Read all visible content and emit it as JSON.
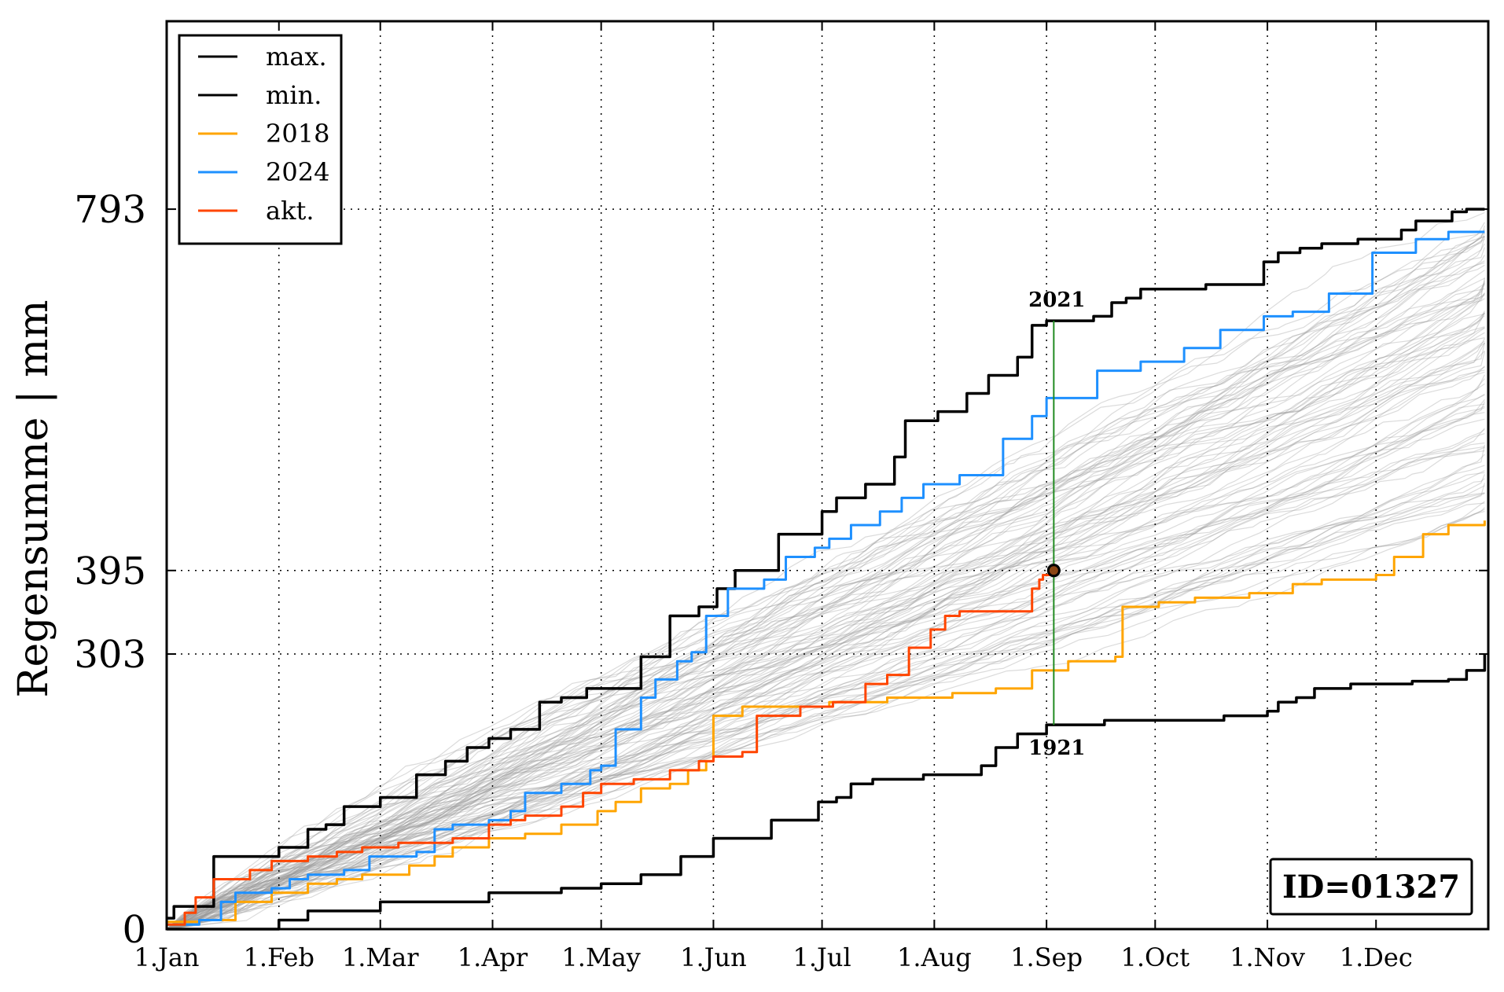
{
  "chart_data": {
    "type": "line",
    "ylabel": "Regensumme | mm",
    "xlabel": "",
    "title": "",
    "x_unit": "day of year",
    "xlim": [
      1,
      366
    ],
    "ylim": [
      0,
      1000
    ],
    "xticks": [
      {
        "day": 1,
        "label": "1.Jan"
      },
      {
        "day": 32,
        "label": "1.Feb"
      },
      {
        "day": 60,
        "label": "1.Mar"
      },
      {
        "day": 91,
        "label": "1.Apr"
      },
      {
        "day": 121,
        "label": "1.May"
      },
      {
        "day": 152,
        "label": "1.Jun"
      },
      {
        "day": 182,
        "label": "1.Jul"
      },
      {
        "day": 213,
        "label": "1.Aug"
      },
      {
        "day": 244,
        "label": "1.Sep"
      },
      {
        "day": 274,
        "label": "1.Oct"
      },
      {
        "day": 305,
        "label": "1.Nov"
      },
      {
        "day": 335,
        "label": "1.Dec"
      }
    ],
    "yticks": [
      0,
      303,
      395,
      793
    ],
    "grid": true,
    "legend_position": "top-left",
    "series": [
      {
        "name": "max.",
        "color": "#000000",
        "points": [
          [
            1,
            12
          ],
          [
            3,
            25
          ],
          [
            14,
            80
          ],
          [
            32,
            90
          ],
          [
            40,
            110
          ],
          [
            45,
            115
          ],
          [
            50,
            135
          ],
          [
            60,
            145
          ],
          [
            70,
            170
          ],
          [
            78,
            185
          ],
          [
            84,
            200
          ],
          [
            90,
            210
          ],
          [
            96,
            220
          ],
          [
            104,
            250
          ],
          [
            110,
            255
          ],
          [
            117,
            265
          ],
          [
            121,
            265
          ],
          [
            132,
            300
          ],
          [
            140,
            345
          ],
          [
            148,
            355
          ],
          [
            153,
            375
          ],
          [
            158,
            395
          ],
          [
            170,
            435
          ],
          [
            182,
            460
          ],
          [
            186,
            475
          ],
          [
            194,
            490
          ],
          [
            202,
            520
          ],
          [
            205,
            560
          ],
          [
            213,
            560
          ],
          [
            214,
            570
          ],
          [
            222,
            590
          ],
          [
            228,
            610
          ],
          [
            236,
            630
          ],
          [
            240,
            665
          ],
          [
            244,
            670
          ],
          [
            257,
            675
          ],
          [
            262,
            690
          ],
          [
            266,
            695
          ],
          [
            270,
            705
          ],
          [
            288,
            710
          ],
          [
            304,
            735
          ],
          [
            308,
            745
          ],
          [
            314,
            750
          ],
          [
            320,
            755
          ],
          [
            330,
            760
          ],
          [
            342,
            770
          ],
          [
            346,
            780
          ],
          [
            356,
            790
          ],
          [
            360,
            793
          ],
          [
            365,
            793
          ]
        ]
      },
      {
        "name": "min.",
        "color": "#000000",
        "points": [
          [
            1,
            0
          ],
          [
            10,
            0
          ],
          [
            32,
            10
          ],
          [
            40,
            20
          ],
          [
            60,
            30
          ],
          [
            80,
            30
          ],
          [
            90,
            40
          ],
          [
            110,
            45
          ],
          [
            121,
            50
          ],
          [
            132,
            60
          ],
          [
            143,
            80
          ],
          [
            152,
            100
          ],
          [
            168,
            120
          ],
          [
            181,
            140
          ],
          [
            186,
            145
          ],
          [
            190,
            160
          ],
          [
            196,
            165
          ],
          [
            210,
            170
          ],
          [
            226,
            180
          ],
          [
            230,
            200
          ],
          [
            236,
            215
          ],
          [
            244,
            225
          ],
          [
            260,
            230
          ],
          [
            280,
            230
          ],
          [
            293,
            235
          ],
          [
            305,
            240
          ],
          [
            308,
            250
          ],
          [
            313,
            255
          ],
          [
            318,
            265
          ],
          [
            328,
            270
          ],
          [
            345,
            273
          ],
          [
            355,
            275
          ],
          [
            360,
            285
          ],
          [
            365,
            303
          ]
        ]
      },
      {
        "name": "2018",
        "color": "#FFA500",
        "points": [
          [
            1,
            8
          ],
          [
            10,
            10
          ],
          [
            20,
            30
          ],
          [
            30,
            40
          ],
          [
            40,
            50
          ],
          [
            48,
            55
          ],
          [
            55,
            60
          ],
          [
            60,
            60
          ],
          [
            68,
            70
          ],
          [
            75,
            80
          ],
          [
            80,
            90
          ],
          [
            90,
            100
          ],
          [
            100,
            105
          ],
          [
            110,
            115
          ],
          [
            120,
            130
          ],
          [
            125,
            140
          ],
          [
            132,
            155
          ],
          [
            140,
            160
          ],
          [
            145,
            175
          ],
          [
            150,
            185
          ],
          [
            152,
            235
          ],
          [
            160,
            245
          ],
          [
            172,
            245
          ],
          [
            184,
            250
          ],
          [
            200,
            255
          ],
          [
            218,
            260
          ],
          [
            230,
            265
          ],
          [
            240,
            285
          ],
          [
            250,
            295
          ],
          [
            263,
            300
          ],
          [
            265,
            355
          ],
          [
            275,
            360
          ],
          [
            285,
            365
          ],
          [
            300,
            370
          ],
          [
            312,
            380
          ],
          [
            320,
            385
          ],
          [
            330,
            385
          ],
          [
            335,
            390
          ],
          [
            340,
            410
          ],
          [
            348,
            435
          ],
          [
            355,
            445
          ],
          [
            365,
            450
          ]
        ]
      },
      {
        "name": "2024",
        "color": "#1E90FF",
        "points": [
          [
            1,
            5
          ],
          [
            10,
            10
          ],
          [
            16,
            30
          ],
          [
            20,
            40
          ],
          [
            30,
            45
          ],
          [
            35,
            55
          ],
          [
            40,
            60
          ],
          [
            50,
            65
          ],
          [
            57,
            80
          ],
          [
            60,
            80
          ],
          [
            70,
            85
          ],
          [
            75,
            110
          ],
          [
            80,
            115
          ],
          [
            90,
            120
          ],
          [
            96,
            130
          ],
          [
            100,
            150
          ],
          [
            110,
            160
          ],
          [
            118,
            175
          ],
          [
            121,
            180
          ],
          [
            125,
            220
          ],
          [
            132,
            255
          ],
          [
            136,
            275
          ],
          [
            142,
            295
          ],
          [
            146,
            305
          ],
          [
            150,
            345
          ],
          [
            156,
            375
          ],
          [
            166,
            385
          ],
          [
            172,
            410
          ],
          [
            180,
            420
          ],
          [
            184,
            430
          ],
          [
            190,
            445
          ],
          [
            198,
            460
          ],
          [
            204,
            475
          ],
          [
            210,
            490
          ],
          [
            220,
            500
          ],
          [
            232,
            540
          ],
          [
            240,
            565
          ],
          [
            244,
            585
          ],
          [
            258,
            615
          ],
          [
            270,
            625
          ],
          [
            282,
            640
          ],
          [
            292,
            660
          ],
          [
            304,
            675
          ],
          [
            312,
            680
          ],
          [
            322,
            700
          ],
          [
            334,
            745
          ],
          [
            346,
            760
          ],
          [
            355,
            768
          ],
          [
            365,
            768
          ]
        ]
      },
      {
        "name": "akt.",
        "color": "#FF4500",
        "points": [
          [
            1,
            5
          ],
          [
            6,
            18
          ],
          [
            9,
            35
          ],
          [
            14,
            55
          ],
          [
            20,
            55
          ],
          [
            24,
            65
          ],
          [
            30,
            75
          ],
          [
            40,
            80
          ],
          [
            48,
            85
          ],
          [
            55,
            90
          ],
          [
            60,
            90
          ],
          [
            65,
            95
          ],
          [
            80,
            100
          ],
          [
            90,
            115
          ],
          [
            96,
            120
          ],
          [
            100,
            125
          ],
          [
            110,
            135
          ],
          [
            116,
            150
          ],
          [
            121,
            160
          ],
          [
            130,
            165
          ],
          [
            140,
            175
          ],
          [
            148,
            185
          ],
          [
            152,
            190
          ],
          [
            160,
            195
          ],
          [
            164,
            235
          ],
          [
            172,
            235
          ],
          [
            176,
            245
          ],
          [
            185,
            250
          ],
          [
            194,
            270
          ],
          [
            200,
            280
          ],
          [
            206,
            310
          ],
          [
            212,
            330
          ],
          [
            216,
            345
          ],
          [
            220,
            350
          ],
          [
            235,
            350
          ],
          [
            240,
            375
          ],
          [
            242,
            385
          ],
          [
            243,
            390
          ],
          [
            245,
            395
          ]
        ]
      },
      {
        "name": "highlight",
        "color": "#000000",
        "marker": "circle",
        "points": [
          [
            246,
            395
          ]
        ]
      }
    ],
    "annotations": [
      {
        "text": "2021",
        "x": 246,
        "y": 670,
        "anchor": "above"
      },
      {
        "text": "1921",
        "x": 246,
        "y": 225,
        "anchor": "below"
      }
    ],
    "annotation_line": {
      "x": 246,
      "y_from": 225,
      "y_to": 670,
      "color": "#228B22"
    },
    "id_label": "ID=01327",
    "background_lines": {
      "color": "#999999",
      "count": 90,
      "description_free": true
    }
  }
}
